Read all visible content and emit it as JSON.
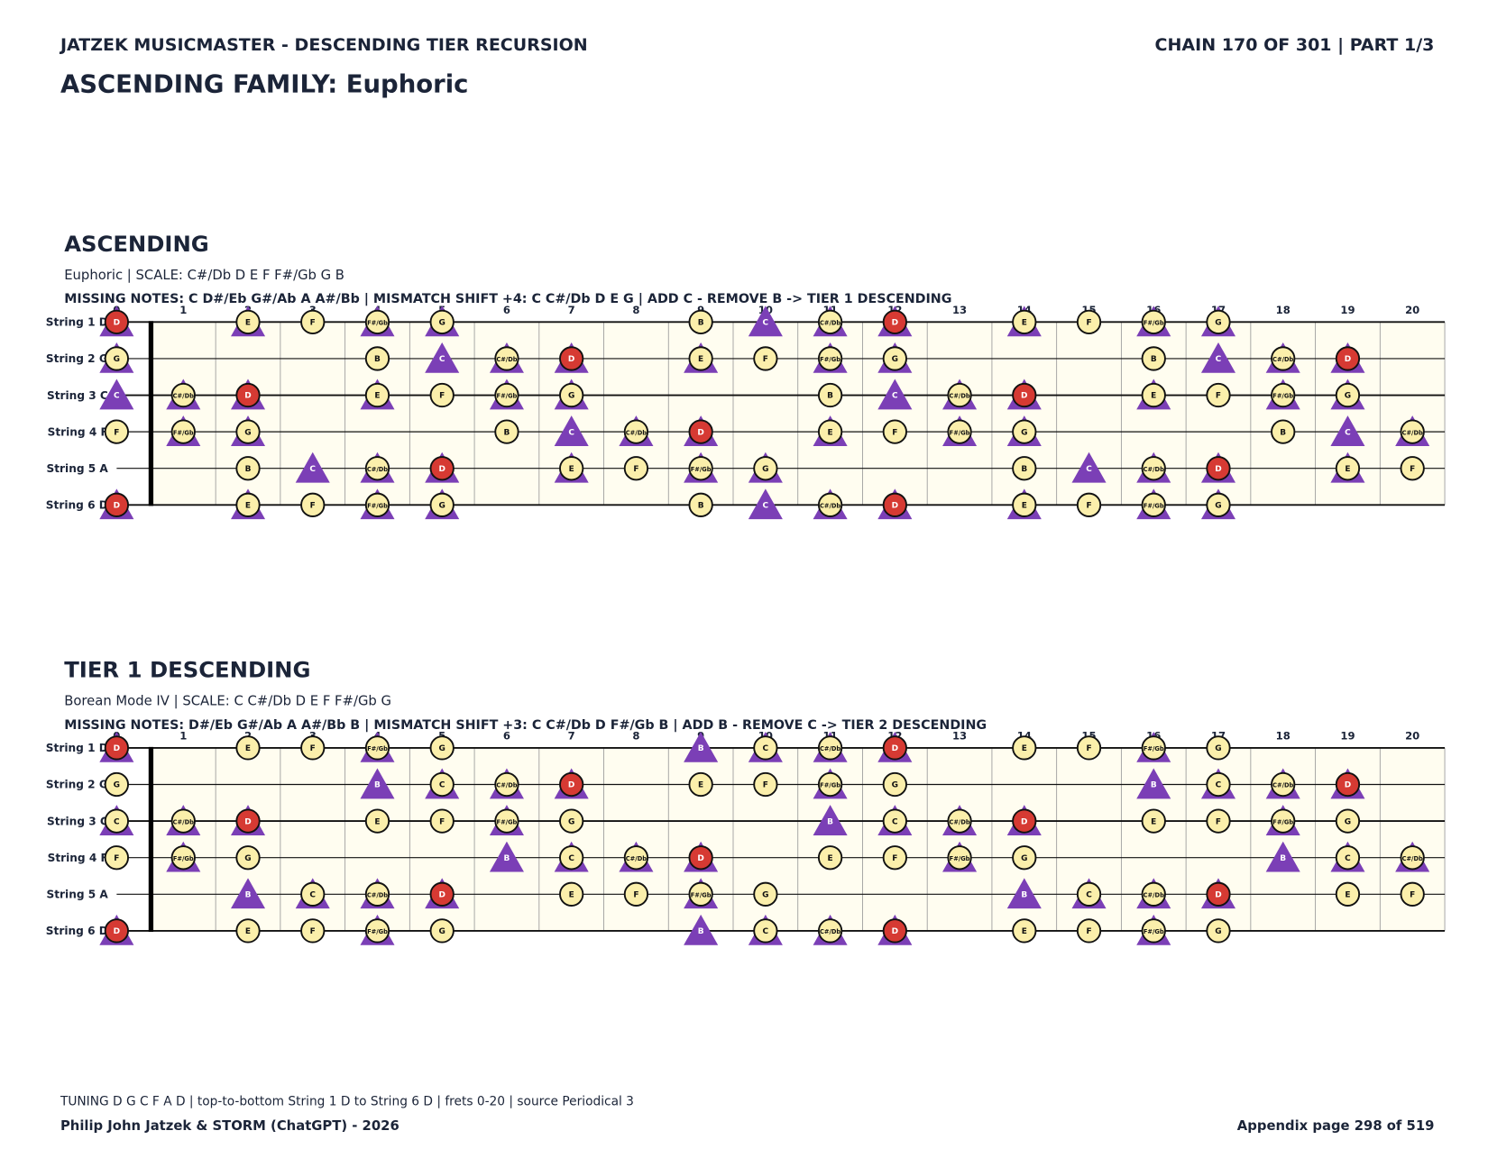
{
  "header": {
    "left": "JATZEK MUSICMASTER - DESCENDING TIER RECURSION",
    "right": "CHAIN 170 OF 301  |  PART 1/3",
    "title": "ASCENDING FAMILY: Euphoric"
  },
  "highlight": "D",
  "boards": [
    {
      "heading": "ASCENDING",
      "subtitle": "Euphoric  |  SCALE: C#/Db D E F F#/Gb G B",
      "missing": "MISSING NOTES: C D#/Eb G#/Ab A A#/Bb  |  MISMATCH SHIFT +4: C C#/Db D E G  |  ADD C - REMOVE B -> TIER 1 DESCENDING",
      "frets": [
        0,
        1,
        2,
        3,
        4,
        5,
        6,
        7,
        8,
        9,
        10,
        11,
        12,
        13,
        14,
        15,
        16,
        17,
        18,
        19,
        20
      ],
      "strings": [
        {
          "label": "String 1 D",
          "cells": [
            [
              "D",
              "ct"
            ],
            null,
            [
              "E",
              "ct"
            ],
            [
              "F",
              "c"
            ],
            [
              "F#/Gb",
              "ct"
            ],
            [
              "G",
              "ct"
            ],
            null,
            null,
            null,
            [
              "B",
              "c"
            ],
            [
              "C",
              "t"
            ],
            [
              "C#/Db",
              "ct"
            ],
            [
              "D",
              "ct"
            ],
            null,
            [
              "E",
              "ct"
            ],
            [
              "F",
              "c"
            ],
            [
              "F#/Gb",
              "ct"
            ],
            [
              "G",
              "ct"
            ],
            null,
            null,
            null
          ]
        },
        {
          "label": "String 2 G",
          "cells": [
            [
              "G",
              "ct"
            ],
            null,
            null,
            null,
            [
              "B",
              "c"
            ],
            [
              "C",
              "t"
            ],
            [
              "C#/Db",
              "ct"
            ],
            [
              "D",
              "ct"
            ],
            null,
            [
              "E",
              "ct"
            ],
            [
              "F",
              "c"
            ],
            [
              "F#/Gb",
              "ct"
            ],
            [
              "G",
              "ct"
            ],
            null,
            null,
            null,
            [
              "B",
              "c"
            ],
            [
              "C",
              "t"
            ],
            [
              "C#/Db",
              "ct"
            ],
            [
              "D",
              "ct"
            ],
            null
          ]
        },
        {
          "label": "String 3 C",
          "cells": [
            [
              "C",
              "t"
            ],
            [
              "C#/Db",
              "ct"
            ],
            [
              "D",
              "ct"
            ],
            null,
            [
              "E",
              "ct"
            ],
            [
              "F",
              "c"
            ],
            [
              "F#/Gb",
              "ct"
            ],
            [
              "G",
              "ct"
            ],
            null,
            null,
            null,
            [
              "B",
              "c"
            ],
            [
              "C",
              "t"
            ],
            [
              "C#/Db",
              "ct"
            ],
            [
              "D",
              "ct"
            ],
            null,
            [
              "E",
              "ct"
            ],
            [
              "F",
              "c"
            ],
            [
              "F#/Gb",
              "ct"
            ],
            [
              "G",
              "ct"
            ],
            null
          ]
        },
        {
          "label": "String 4 F",
          "cells": [
            [
              "F",
              "c"
            ],
            [
              "F#/Gb",
              "ct"
            ],
            [
              "G",
              "ct"
            ],
            null,
            null,
            null,
            [
              "B",
              "c"
            ],
            [
              "C",
              "t"
            ],
            [
              "C#/Db",
              "ct"
            ],
            [
              "D",
              "ct"
            ],
            null,
            [
              "E",
              "ct"
            ],
            [
              "F",
              "c"
            ],
            [
              "F#/Gb",
              "ct"
            ],
            [
              "G",
              "ct"
            ],
            null,
            null,
            null,
            [
              "B",
              "c"
            ],
            [
              "C",
              "t"
            ],
            [
              "C#/Db",
              "ct"
            ]
          ]
        },
        {
          "label": "String 5 A",
          "cells": [
            null,
            null,
            [
              "B",
              "c"
            ],
            [
              "C",
              "t"
            ],
            [
              "C#/Db",
              "ct"
            ],
            [
              "D",
              "ct"
            ],
            null,
            [
              "E",
              "ct"
            ],
            [
              "F",
              "c"
            ],
            [
              "F#/Gb",
              "ct"
            ],
            [
              "G",
              "ct"
            ],
            null,
            null,
            null,
            [
              "B",
              "c"
            ],
            [
              "C",
              "t"
            ],
            [
              "C#/Db",
              "ct"
            ],
            [
              "D",
              "ct"
            ],
            null,
            [
              "E",
              "ct"
            ],
            [
              "F",
              "c"
            ]
          ]
        },
        {
          "label": "String 6 D",
          "cells": [
            [
              "D",
              "ct"
            ],
            null,
            [
              "E",
              "ct"
            ],
            [
              "F",
              "c"
            ],
            [
              "F#/Gb",
              "ct"
            ],
            [
              "G",
              "ct"
            ],
            null,
            null,
            null,
            [
              "B",
              "c"
            ],
            [
              "C",
              "t"
            ],
            [
              "C#/Db",
              "ct"
            ],
            [
              "D",
              "ct"
            ],
            null,
            [
              "E",
              "ct"
            ],
            [
              "F",
              "c"
            ],
            [
              "F#/Gb",
              "ct"
            ],
            [
              "G",
              "ct"
            ],
            null,
            null,
            null
          ]
        }
      ]
    },
    {
      "heading": "TIER 1 DESCENDING",
      "subtitle": "Borean Mode IV  |  SCALE: C C#/Db D E F F#/Gb G",
      "missing": "MISSING NOTES: D#/Eb G#/Ab A A#/Bb B  |  MISMATCH SHIFT +3: C C#/Db D F#/Gb B  |  ADD B - REMOVE C -> TIER 2 DESCENDING",
      "frets": [
        0,
        1,
        2,
        3,
        4,
        5,
        6,
        7,
        8,
        9,
        10,
        11,
        12,
        13,
        14,
        15,
        16,
        17,
        18,
        19,
        20
      ],
      "strings": [
        {
          "label": "String 1 D",
          "cells": [
            [
              "D",
              "ct"
            ],
            null,
            [
              "E",
              "c"
            ],
            [
              "F",
              "c"
            ],
            [
              "F#/Gb",
              "ct"
            ],
            [
              "G",
              "c"
            ],
            null,
            null,
            null,
            [
              "B",
              "t"
            ],
            [
              "C",
              "ct"
            ],
            [
              "C#/Db",
              "ct"
            ],
            [
              "D",
              "ct"
            ],
            null,
            [
              "E",
              "c"
            ],
            [
              "F",
              "c"
            ],
            [
              "F#/Gb",
              "ct"
            ],
            [
              "G",
              "c"
            ],
            null,
            null,
            null
          ]
        },
        {
          "label": "String 2 G",
          "cells": [
            [
              "G",
              "c"
            ],
            null,
            null,
            null,
            [
              "B",
              "t"
            ],
            [
              "C",
              "ct"
            ],
            [
              "C#/Db",
              "ct"
            ],
            [
              "D",
              "ct"
            ],
            null,
            [
              "E",
              "c"
            ],
            [
              "F",
              "c"
            ],
            [
              "F#/Gb",
              "ct"
            ],
            [
              "G",
              "c"
            ],
            null,
            null,
            null,
            [
              "B",
              "t"
            ],
            [
              "C",
              "ct"
            ],
            [
              "C#/Db",
              "ct"
            ],
            [
              "D",
              "ct"
            ],
            null
          ]
        },
        {
          "label": "String 3 C",
          "cells": [
            [
              "C",
              "ct"
            ],
            [
              "C#/Db",
              "ct"
            ],
            [
              "D",
              "ct"
            ],
            null,
            [
              "E",
              "c"
            ],
            [
              "F",
              "c"
            ],
            [
              "F#/Gb",
              "ct"
            ],
            [
              "G",
              "c"
            ],
            null,
            null,
            null,
            [
              "B",
              "t"
            ],
            [
              "C",
              "ct"
            ],
            [
              "C#/Db",
              "ct"
            ],
            [
              "D",
              "ct"
            ],
            null,
            [
              "E",
              "c"
            ],
            [
              "F",
              "c"
            ],
            [
              "F#/Gb",
              "ct"
            ],
            [
              "G",
              "c"
            ],
            null
          ]
        },
        {
          "label": "String 4 F",
          "cells": [
            [
              "F",
              "c"
            ],
            [
              "F#/Gb",
              "ct"
            ],
            [
              "G",
              "c"
            ],
            null,
            null,
            null,
            [
              "B",
              "t"
            ],
            [
              "C",
              "ct"
            ],
            [
              "C#/Db",
              "ct"
            ],
            [
              "D",
              "ct"
            ],
            null,
            [
              "E",
              "c"
            ],
            [
              "F",
              "c"
            ],
            [
              "F#/Gb",
              "ct"
            ],
            [
              "G",
              "c"
            ],
            null,
            null,
            null,
            [
              "B",
              "t"
            ],
            [
              "C",
              "ct"
            ],
            [
              "C#/Db",
              "ct"
            ]
          ]
        },
        {
          "label": "String 5 A",
          "cells": [
            null,
            null,
            [
              "B",
              "t"
            ],
            [
              "C",
              "ct"
            ],
            [
              "C#/Db",
              "ct"
            ],
            [
              "D",
              "ct"
            ],
            null,
            [
              "E",
              "c"
            ],
            [
              "F",
              "c"
            ],
            [
              "F#/Gb",
              "ct"
            ],
            [
              "G",
              "c"
            ],
            null,
            null,
            null,
            [
              "B",
              "t"
            ],
            [
              "C",
              "ct"
            ],
            [
              "C#/Db",
              "ct"
            ],
            [
              "D",
              "ct"
            ],
            null,
            [
              "E",
              "c"
            ],
            [
              "F",
              "c"
            ]
          ]
        },
        {
          "label": "String 6 D",
          "cells": [
            [
              "D",
              "ct"
            ],
            null,
            [
              "E",
              "c"
            ],
            [
              "F",
              "c"
            ],
            [
              "F#/Gb",
              "ct"
            ],
            [
              "G",
              "c"
            ],
            null,
            null,
            null,
            [
              "B",
              "t"
            ],
            [
              "C",
              "ct"
            ],
            [
              "C#/Db",
              "ct"
            ],
            [
              "D",
              "ct"
            ],
            null,
            [
              "E",
              "c"
            ],
            [
              "F",
              "c"
            ],
            [
              "F#/Gb",
              "ct"
            ],
            [
              "G",
              "c"
            ],
            null,
            null,
            null
          ]
        }
      ]
    }
  ],
  "footer": {
    "tuning": "TUNING D G C F A D | top-to-bottom String 1 D to String 6 D | frets 0-20 | source Periodical 3",
    "author": "Philip John Jatzek & STORM (ChatGPT) - 2026",
    "page": "Appendix page 298 of 519"
  }
}
